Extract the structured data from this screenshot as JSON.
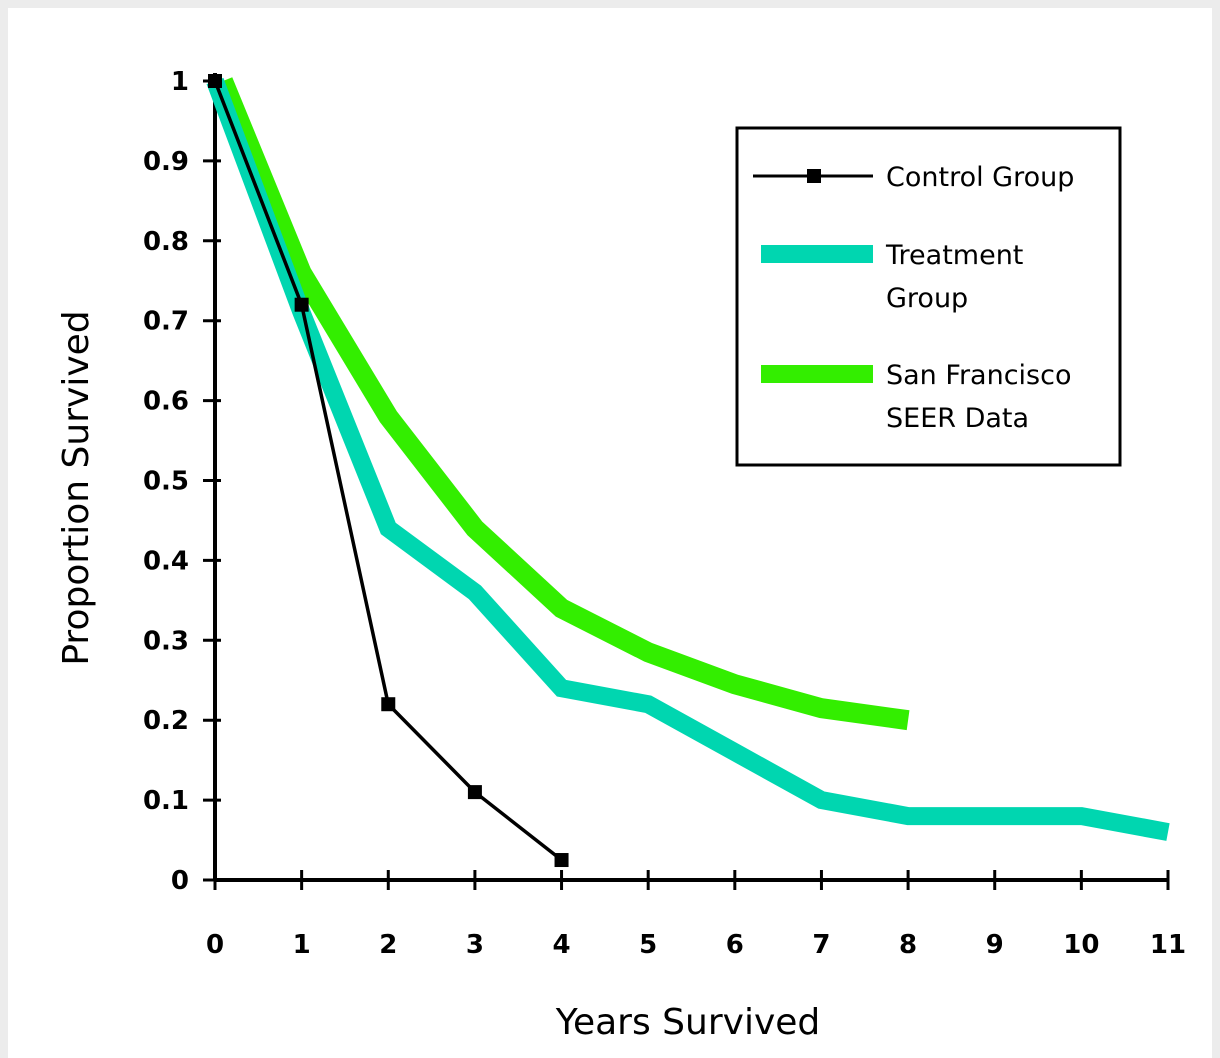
{
  "chart_data": {
    "type": "line",
    "title": "",
    "xlabel": "Years Survived",
    "ylabel": "Proportion Survived",
    "xlim": [
      0,
      11
    ],
    "ylim": [
      0,
      1
    ],
    "x_ticks": [
      "0",
      "1",
      "2",
      "3",
      "4",
      "5",
      "6",
      "7",
      "8",
      "9",
      "10",
      "11"
    ],
    "y_ticks": [
      "0",
      "0.1",
      "0.2",
      "0.3",
      "0.4",
      "0.5",
      "0.6",
      "0.7",
      "0.8",
      "0.9",
      "1"
    ],
    "grid": false,
    "legend_position": "top-right",
    "series": [
      {
        "name": "San Francisco SEER Data",
        "color": "#33ee00",
        "marker": "triangle",
        "x": [
          0,
          1,
          2,
          3,
          4,
          5,
          6,
          7,
          8
        ],
        "y": [
          1.0,
          0.76,
          0.58,
          0.44,
          0.34,
          0.285,
          0.245,
          0.215,
          0.2
        ]
      },
      {
        "name": "Treatment Group",
        "color": "#00d6b0",
        "marker": "circle",
        "x": [
          0,
          1,
          2,
          3,
          4,
          5,
          6,
          7,
          8,
          9,
          10,
          11
        ],
        "y": [
          1.0,
          0.71,
          0.44,
          0.36,
          0.24,
          0.22,
          0.16,
          0.1,
          0.08,
          0.08,
          0.08,
          0.06
        ]
      },
      {
        "name": "Control Group",
        "color": "#000000",
        "marker": "square",
        "x": [
          0,
          1,
          2,
          3,
          4
        ],
        "y": [
          1.0,
          0.72,
          0.22,
          0.11,
          0.025
        ]
      }
    ],
    "legend": [
      {
        "lines": [
          "Control Group"
        ],
        "series_index": 2
      },
      {
        "lines": [
          "Treatment",
          "Group"
        ],
        "series_index": 1
      },
      {
        "lines": [
          "San Francisco",
          "SEER Data"
        ],
        "series_index": 0
      }
    ]
  }
}
